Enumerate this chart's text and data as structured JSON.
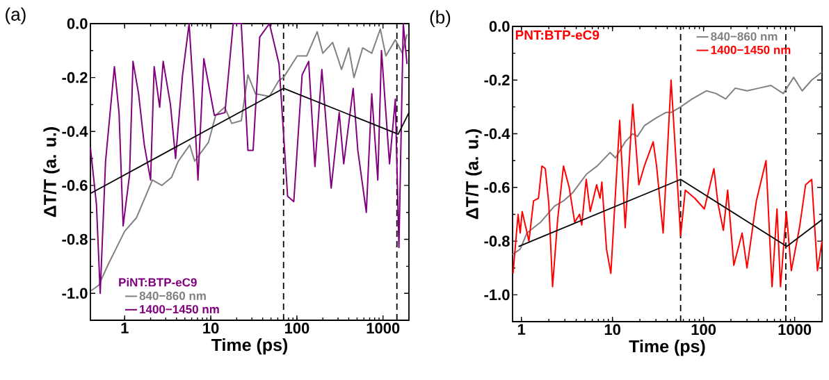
{
  "chart_data": [
    {
      "type": "line",
      "xlabel": "Time (ps)",
      "ylabel": "ΔT/T (a. u.)",
      "log": "x",
      "legend": "bottom left",
      "legend_title": "PiNT:BTP-eC9",
      "annotations": [
        "(a)"
      ],
      "xlim": [
        0.4,
        2000
      ],
      "ylim": [
        -1.1,
        0.0
      ],
      "xticks": [
        1,
        10,
        100,
        1000
      ],
      "yticks": [
        {
          "value": -1.0,
          "label": "-1.0"
        },
        {
          "value": -0.8,
          "label": "-0.8"
        },
        {
          "value": -0.6,
          "label": "-0.6"
        },
        {
          "value": -0.4,
          "label": "-0.4"
        },
        {
          "value": -0.2,
          "label": "-0.2"
        },
        {
          "value": 0.0,
          "label": "0.0"
        }
      ],
      "ref_lines": [
        {
          "axis": "x",
          "value": 70,
          "color": "#000000",
          "line_style": "dashed"
        },
        {
          "axis": "x",
          "value": 1450,
          "color": "#000000",
          "line_style": "dashed"
        }
      ],
      "series": [
        {
          "name": "840−860 nm",
          "color": "#808080",
          "x": [
            0.41,
            0.5,
            0.65,
            1,
            1.37,
            1.86,
            2.1,
            2.7,
            3.5,
            4.2,
            5.7,
            6.5,
            9.4,
            11.4,
            14.5,
            17.5,
            22.6,
            27,
            33,
            48,
            62,
            70,
            101,
            130,
            172,
            200,
            260,
            330,
            400,
            460,
            580,
            740,
            930,
            1080,
            1390,
            1680,
            1900
          ],
          "values": [
            -0.99,
            -0.97,
            -0.89,
            -0.77,
            -0.72,
            -0.62,
            -0.58,
            -0.6,
            -0.57,
            -0.51,
            -0.45,
            -0.51,
            -0.44,
            -0.34,
            -0.31,
            -0.37,
            -0.36,
            -0.19,
            -0.26,
            -0.27,
            -0.21,
            -0.2,
            -0.12,
            -0.12,
            -0.03,
            -0.11,
            -0.07,
            -0.17,
            -0.09,
            -0.2,
            -0.09,
            -0.11,
            -0.02,
            -0.12,
            -0.06,
            -0.11,
            -0.04
          ]
        },
        {
          "name": "1400−1450 nm",
          "color": "#800080",
          "x": [
            0.4,
            0.47,
            0.52,
            0.6,
            0.76,
            0.86,
            0.96,
            1.14,
            1.25,
            1.45,
            1.69,
            2.0,
            2.2,
            2.55,
            2.8,
            3.4,
            3.9,
            4.7,
            5.6,
            6.3,
            7.1,
            8.3,
            11.0,
            14.6,
            18.2,
            22.6,
            27,
            31,
            37,
            48,
            58,
            62,
            78,
            92,
            115,
            137,
            162,
            195,
            250,
            310,
            350,
            450,
            510,
            640,
            740,
            870,
            960,
            1190,
            1390,
            1530,
            1720,
            1900
          ],
          "values": [
            -0.46,
            -0.67,
            -1.0,
            -0.51,
            -0.16,
            -0.33,
            -0.75,
            -0.56,
            -0.14,
            -0.26,
            -0.45,
            -0.58,
            -0.16,
            -0.31,
            -0.14,
            -0.3,
            -0.5,
            -0.19,
            0.0,
            -0.26,
            -0.58,
            -0.13,
            -0.34,
            -0.33,
            0.0,
            0.0,
            -0.47,
            -0.47,
            -0.05,
            0.0,
            -0.11,
            -0.15,
            -0.64,
            -0.66,
            -0.19,
            -0.14,
            -0.53,
            -0.17,
            -0.61,
            -0.33,
            -0.52,
            -0.24,
            -0.47,
            -0.7,
            -0.26,
            -0.58,
            -0.1,
            -0.52,
            -0.28,
            -0.83,
            0.0,
            -0.15
          ]
        },
        {
          "type": "line",
          "color": "#000000",
          "x": [
            0.4,
            70,
            1500,
            2000
          ],
          "values": [
            -0.63,
            -0.24,
            -0.41,
            -0.33
          ]
        }
      ]
    },
    {
      "type": "line",
      "xlabel": "Time (ps)",
      "ylabel": "ΔT/T (a. u.)",
      "log": "x",
      "legend": "top right",
      "annotations": [
        "(b)",
        "PNT:BTP-eC9"
      ],
      "xlim": [
        0.8,
        2000
      ],
      "ylim": [
        -1.1,
        0.0
      ],
      "xticks": [
        1,
        10,
        100,
        1000
      ],
      "yticks": [
        {
          "value": -1.0,
          "label": "-1.0"
        },
        {
          "value": -0.8,
          "label": "-0.8"
        },
        {
          "value": -0.6,
          "label": "-0.6"
        },
        {
          "value": -0.4,
          "label": "-0.4"
        },
        {
          "value": -0.2,
          "label": "-0.2"
        },
        {
          "value": 0.0,
          "label": "0.0"
        }
      ],
      "ref_lines": [
        {
          "axis": "x",
          "value": 56,
          "color": "#000000",
          "line_style": "dashed"
        },
        {
          "axis": "x",
          "value": 800,
          "color": "#000000",
          "line_style": "dashed"
        }
      ],
      "series": [
        {
          "name": "840−860 nm",
          "color": "#808080",
          "x": [
            0.8,
            0.97,
            1.15,
            1.36,
            1.62,
            2.3,
            2.9,
            3.65,
            5.2,
            6.8,
            9.4,
            10.8,
            13.8,
            16.7,
            18.8,
            22.4,
            30.5,
            39,
            44.5,
            56,
            75,
            108,
            137,
            175,
            223,
            300,
            405,
            550,
            750,
            975,
            1210,
            1540,
            2000
          ],
          "values": [
            -0.85,
            -0.83,
            -0.77,
            -0.75,
            -0.73,
            -0.67,
            -0.65,
            -0.62,
            -0.55,
            -0.52,
            -0.47,
            -0.49,
            -0.43,
            -0.4,
            -0.41,
            -0.37,
            -0.34,
            -0.32,
            -0.32,
            -0.3,
            -0.27,
            -0.24,
            -0.25,
            -0.27,
            -0.23,
            -0.24,
            -0.23,
            -0.22,
            -0.25,
            -0.19,
            -0.24,
            -0.2,
            -0.17
          ]
        },
        {
          "name": "1400−1450 nm",
          "color": "#ff0000",
          "x": [
            0.81,
            0.92,
            0.97,
            1.02,
            1.21,
            1.36,
            1.54,
            1.68,
            1.83,
            2.0,
            2.2,
            2.5,
            2.9,
            3.35,
            3.85,
            4.35,
            4.6,
            5.15,
            5.7,
            6.7,
            7.3,
            7.65,
            8.6,
            9.6,
            12.0,
            13.8,
            16.7,
            19.5,
            22.4,
            28,
            30.5,
            36,
            44,
            56,
            63,
            80,
            102,
            130,
            144,
            165,
            184,
            215,
            265,
            300,
            380,
            485,
            565,
            640,
            700,
            810,
            920,
            1130,
            1320,
            1540,
            1780,
            2000
          ],
          "values": [
            -0.92,
            -0.7,
            -0.77,
            -0.69,
            -0.8,
            -0.65,
            -0.64,
            -0.52,
            -0.53,
            -0.66,
            -0.97,
            -0.72,
            -0.52,
            -0.6,
            -0.73,
            -0.7,
            -0.74,
            -0.57,
            -0.69,
            -0.59,
            -0.64,
            -0.58,
            -0.83,
            -0.92,
            -0.35,
            -0.75,
            -0.29,
            -0.59,
            -0.52,
            -0.43,
            -0.52,
            -0.77,
            -0.2,
            -0.78,
            -0.61,
            -0.64,
            -0.68,
            -0.53,
            -0.66,
            -0.76,
            -0.61,
            -0.89,
            -0.77,
            -0.9,
            -0.65,
            -0.5,
            -0.97,
            -0.68,
            -0.97,
            -0.69,
            -0.91,
            -0.75,
            -0.59,
            -0.57,
            -0.91,
            -0.8
          ]
        },
        {
          "type": "line",
          "color": "#000000",
          "x": [
            0.93,
            56,
            820,
            2000
          ],
          "values": [
            -0.82,
            -0.57,
            -0.82,
            -0.72
          ]
        }
      ]
    }
  ]
}
